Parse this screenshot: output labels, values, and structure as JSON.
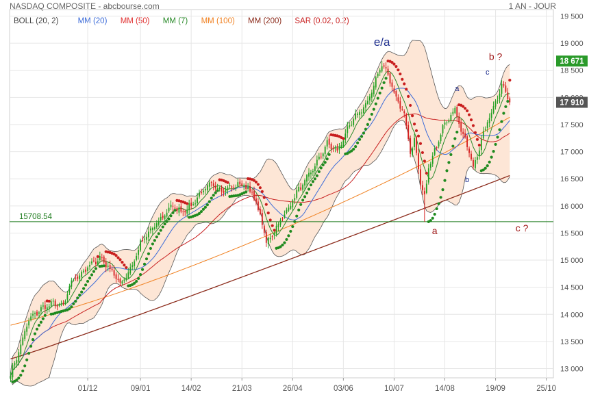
{
  "header": {
    "title": "NASDAQ COMPOSITE - abcbourse.com",
    "period": "1 AN - JOUR"
  },
  "legend": [
    {
      "label": "BOLL (20, 2)",
      "color": "#444444"
    },
    {
      "label": "MM (20)",
      "color": "#3b6bd8"
    },
    {
      "label": "MM (50)",
      "color": "#e03030"
    },
    {
      "label": "MM (7)",
      "color": "#2a8a2a"
    },
    {
      "label": "MM (100)",
      "color": "#f08020"
    },
    {
      "label": "MM (200)",
      "color": "#8b2a1a"
    },
    {
      "label": "SAR (0.02, 0.2)",
      "color": "#c81e1e"
    }
  ],
  "colors": {
    "up": "#22a022",
    "down": "#d42020",
    "band_fill": "#fde6d6",
    "band_line": "#555555",
    "mm20": "#3b6bd8",
    "mm7": "#2a8a2a",
    "mm100": "#f08020",
    "mm200": "#8b2a1a",
    "level": "#1a7a1a",
    "wave_blue": "#1f2f8f",
    "wave_red": "#a01818",
    "price_tag_high": "#2a9a2a",
    "price_tag_last": "#555555"
  },
  "chart_data": {
    "type": "candlestick",
    "y_ticks": [
      13000,
      13500,
      14000,
      14500,
      15000,
      15500,
      16000,
      16500,
      17000,
      17500,
      18000,
      18500,
      19000,
      19500
    ],
    "y_tick_labels": [
      "13 000",
      "13 500",
      "14 000",
      "14 500",
      "15 000",
      "15 500",
      "16 000",
      "16 500",
      "17 000",
      "17 500",
      "18 000",
      "18 500",
      "19 000",
      "19 500"
    ],
    "ylim": [
      12830,
      19620
    ],
    "x_tick_labels": [
      "01/12",
      "09/01",
      "14/02",
      "21/03",
      "26/04",
      "03/06",
      "10/07",
      "14/08",
      "19/09",
      "25/10"
    ],
    "x_tick_days": [
      38,
      64,
      89,
      114,
      139,
      164,
      189,
      214,
      239,
      264
    ],
    "x_days_total": 268,
    "price_tags": [
      {
        "label": "18 671",
        "value": 18671,
        "kind": "high"
      },
      {
        "label": "17 910",
        "value": 17910,
        "kind": "last"
      }
    ],
    "level_line": {
      "label": "15708.54",
      "value": 15708.54
    },
    "wave_labels": [
      {
        "text": "e/a",
        "day": 183,
        "value": 18950,
        "color": "blue",
        "size": 17
      },
      {
        "text": "a",
        "day": 209,
        "value": 15480,
        "color": "red",
        "size": 14
      },
      {
        "text": "a",
        "day": 220,
        "value": 18120,
        "color": "blue",
        "size": 11
      },
      {
        "text": "b",
        "day": 225,
        "value": 16440,
        "color": "blue",
        "size": 11
      },
      {
        "text": "c",
        "day": 235,
        "value": 18420,
        "color": "blue",
        "size": 11
      },
      {
        "text": "b ?",
        "day": 239,
        "value": 18690,
        "color": "red",
        "size": 14
      },
      {
        "text": "c ?",
        "day": 252,
        "value": 15530,
        "color": "red",
        "size": 14
      }
    ],
    "anchors": [
      [
        0,
        12900
      ],
      [
        3,
        13200
      ],
      [
        9,
        13900
      ],
      [
        15,
        14100
      ],
      [
        21,
        14200
      ],
      [
        26,
        14150
      ],
      [
        30,
        14600
      ],
      [
        36,
        14800
      ],
      [
        44,
        15050
      ],
      [
        50,
        14800
      ],
      [
        54,
        14550
      ],
      [
        60,
        14900
      ],
      [
        64,
        15300
      ],
      [
        69,
        15550
      ],
      [
        74,
        15750
      ],
      [
        79,
        16000
      ],
      [
        84,
        15900
      ],
      [
        89,
        16000
      ],
      [
        94,
        16250
      ],
      [
        99,
        16400
      ],
      [
        104,
        16300
      ],
      [
        109,
        16350
      ],
      [
        114,
        16400
      ],
      [
        119,
        16250
      ],
      [
        124,
        15700
      ],
      [
        126,
        15300
      ],
      [
        130,
        15550
      ],
      [
        136,
        15900
      ],
      [
        141,
        16250
      ],
      [
        146,
        16500
      ],
      [
        151,
        16800
      ],
      [
        156,
        17150
      ],
      [
        161,
        17000
      ],
      [
        166,
        17400
      ],
      [
        171,
        17700
      ],
      [
        176,
        17900
      ],
      [
        181,
        18450
      ],
      [
        183,
        18600
      ],
      [
        185,
        18500
      ],
      [
        190,
        18000
      ],
      [
        194,
        17700
      ],
      [
        197,
        17000
      ],
      [
        199,
        17200
      ],
      [
        202,
        16400
      ],
      [
        204,
        16150
      ],
      [
        206,
        16700
      ],
      [
        210,
        17100
      ],
      [
        213,
        17500
      ],
      [
        216,
        17600
      ],
      [
        219,
        17800
      ],
      [
        222,
        17400
      ],
      [
        226,
        17000
      ],
      [
        228,
        16700
      ],
      [
        232,
        17200
      ],
      [
        236,
        17650
      ],
      [
        240,
        18000
      ],
      [
        242,
        18250
      ],
      [
        244,
        18100
      ],
      [
        246,
        17910
      ]
    ]
  }
}
